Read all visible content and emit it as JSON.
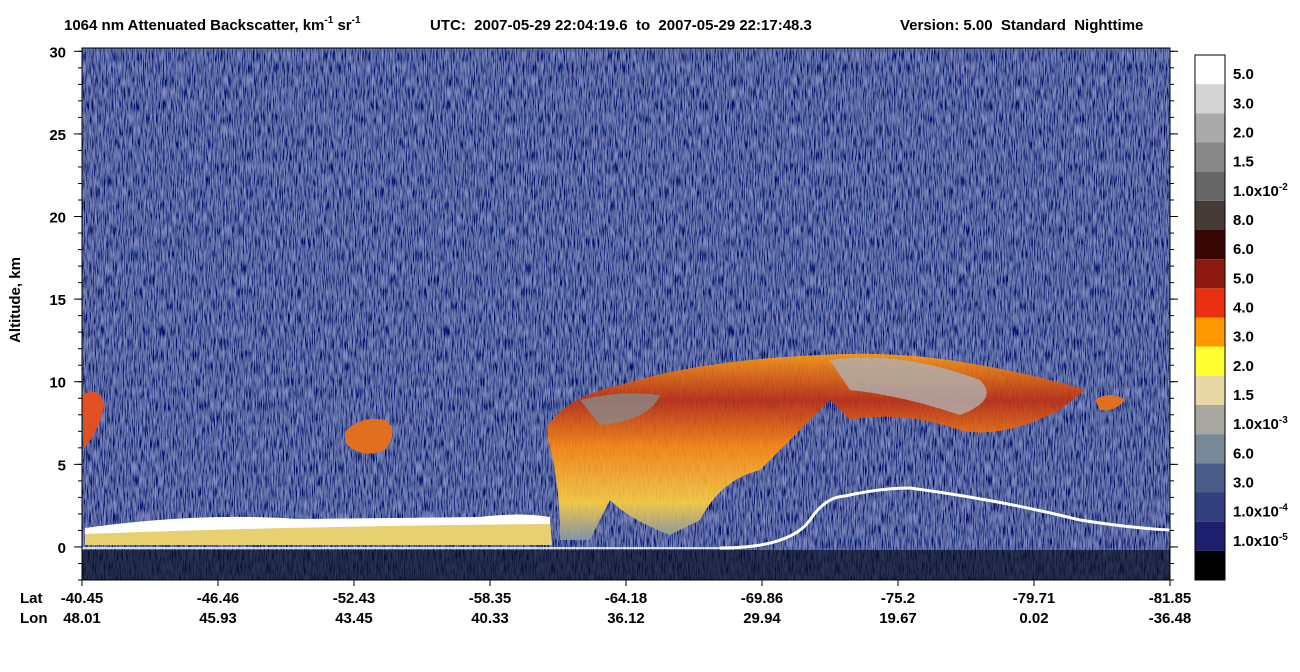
{
  "chart_data": {
    "type": "image",
    "title": {
      "text1": "1064 nm Attenuated Backscatter, km",
      "sup1": "-1",
      "text2": " sr",
      "sup2": "-1"
    },
    "utc": "UTC:  2007-05-29 22:04:19.6  to  2007-05-29 22:17:48.3",
    "version": "Version: 5.00  Standard  Nighttime",
    "ylabel": "Altitude, km",
    "ylim": [
      -2,
      30.2
    ],
    "yticks": [
      0,
      5,
      10,
      15,
      20,
      25,
      30
    ],
    "x_row_labels": [
      "Lat",
      "Lon"
    ],
    "lat": [
      -40.45,
      -46.46,
      -52.43,
      -58.35,
      -64.18,
      -69.86,
      -75.2,
      -79.71,
      -81.85
    ],
    "lon": [
      48.01,
      45.93,
      43.45,
      40.33,
      36.12,
      29.94,
      19.67,
      0.02,
      -36.48
    ],
    "colorbar": {
      "colors": [
        "#ffffff",
        "#d4d4d4",
        "#aaaaaa",
        "#888888",
        "#666666",
        "#463a36",
        "#3a0505",
        "#8a1a10",
        "#e83010",
        "#ff9800",
        "#ffff30",
        "#e8d8a8",
        "#a8a8a0",
        "#788898",
        "#4a5c88",
        "#334080",
        "#1e1e6e",
        "#000000"
      ],
      "labels": [
        {
          "base": "5.0"
        },
        {
          "base": "3.0"
        },
        {
          "base": "2.0"
        },
        {
          "base": "1.5"
        },
        {
          "base": "1.0x10",
          "exp": "-2"
        },
        {
          "base": "8.0"
        },
        {
          "base": "6.0"
        },
        {
          "base": "5.0"
        },
        {
          "base": "4.0"
        },
        {
          "base": "3.0"
        },
        {
          "base": "2.0"
        },
        {
          "base": "1.5"
        },
        {
          "base": "1.0x10",
          "exp": "-3"
        },
        {
          "base": "6.0"
        },
        {
          "base": "3.0"
        },
        {
          "base": "1.0x10",
          "exp": "-4"
        },
        {
          "base": "1.0x10",
          "exp": "-5"
        }
      ]
    }
  }
}
